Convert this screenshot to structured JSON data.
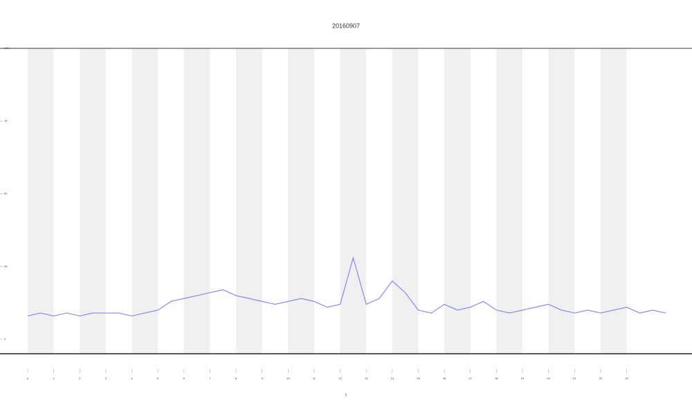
{
  "chart_data": {
    "type": "line",
    "title": "20160907",
    "x_label": "t",
    "x": [
      0,
      0.5,
      1,
      1.5,
      2,
      2.5,
      3,
      3.5,
      4,
      4.5,
      5,
      5.5,
      6,
      6.5,
      7,
      7.5,
      8,
      8.5,
      9,
      9.5,
      10,
      10.5,
      11,
      11.5,
      12,
      12.5,
      13,
      13.5,
      14,
      14.5,
      15,
      15.5,
      16,
      16.5,
      17,
      17.5,
      18,
      18.5,
      19,
      19.5,
      20,
      20.5,
      21,
      21.5,
      22,
      22.5,
      23,
      23.5,
      24,
      24.5
    ],
    "series": [
      {
        "name": "",
        "color": "#6b6bf0",
        "values": [
          8,
          9,
          8,
          9,
          8,
          9,
          9,
          9,
          8,
          9,
          10,
          13,
          14,
          15,
          16,
          17,
          15,
          14,
          13,
          12,
          13,
          14,
          13,
          11,
          12,
          28,
          12,
          14,
          20,
          16,
          10,
          9,
          12,
          10,
          11,
          13,
          10,
          9,
          10,
          11,
          12,
          10,
          9,
          10,
          9,
          10,
          11,
          9,
          10,
          9
        ]
      }
    ],
    "xlim": [
      0,
      24.5
    ],
    "ylim": [
      -5,
      100
    ],
    "xticks": [
      0,
      1,
      2,
      3,
      4,
      5,
      6,
      7,
      8,
      9,
      10,
      11,
      12,
      13,
      14,
      15,
      16,
      17,
      18,
      19,
      20,
      21,
      22,
      23
    ],
    "yticks": [
      0,
      25,
      50,
      75,
      100
    ],
    "grid": false
  }
}
